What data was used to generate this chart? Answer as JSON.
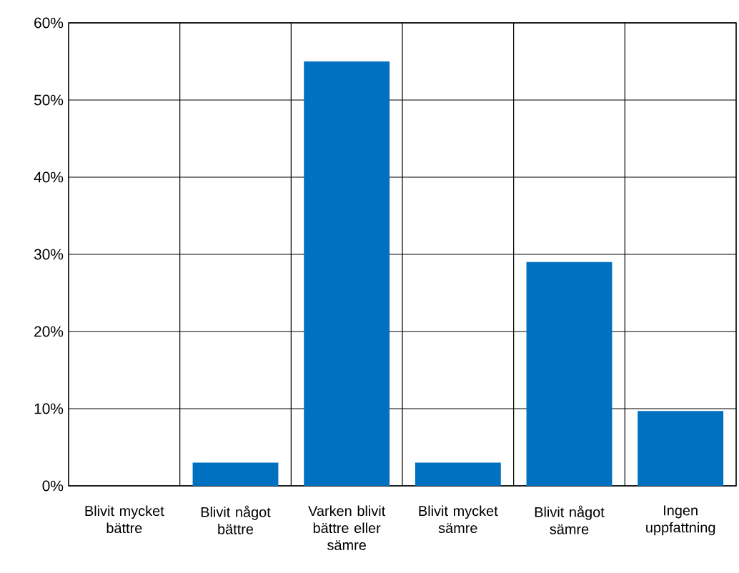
{
  "chart_data": {
    "type": "bar",
    "categories": [
      "Blivit mycket bättre",
      "Blivit något bättre",
      "Varken blivit bättre eller sämre",
      "Blivit mycket sämre",
      "Blivit något sämre",
      "Ingen uppfattning"
    ],
    "values": [
      0,
      3,
      55,
      3,
      29,
      9.7
    ],
    "color": "#0070c0",
    "ylim": [
      0,
      60
    ],
    "yticks": [
      {
        "value": 0,
        "label": "0%"
      },
      {
        "value": 10,
        "label": "10%"
      },
      {
        "value": 20,
        "label": "20%"
      },
      {
        "value": 30,
        "label": "30%"
      },
      {
        "value": 40,
        "label": "40%"
      },
      {
        "value": 50,
        "label": "50%"
      },
      {
        "value": 60,
        "label": "60%"
      }
    ],
    "grid": true
  }
}
